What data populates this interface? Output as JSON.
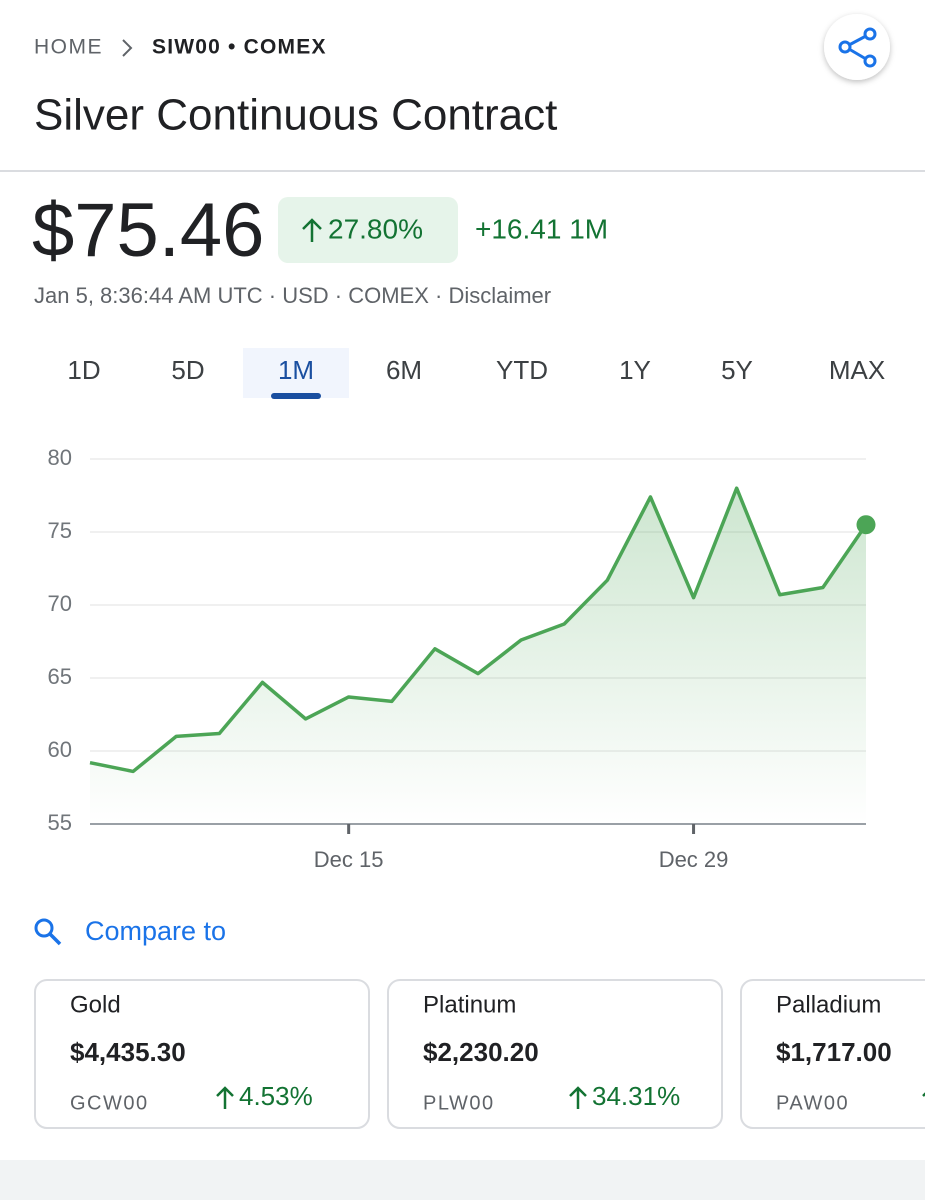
{
  "header": {
    "breadcrumb_home": "HOME",
    "breadcrumb_symbol": "SIW00 • COMEX",
    "title": "Silver Continuous Contract"
  },
  "quote": {
    "price": "$75.46",
    "change_percent": "27.80%",
    "change_absolute": "+16.41 1M",
    "timestamp": "Jan 5, 8:36:44 AM UTC · USD · COMEX · Disclaimer"
  },
  "tabs": {
    "items": [
      "1D",
      "5D",
      "1M",
      "6M",
      "YTD",
      "1Y",
      "5Y",
      "MAX"
    ],
    "selected": "1M"
  },
  "chart_data": {
    "type": "line",
    "categories": [
      null,
      null,
      null,
      null,
      null,
      null,
      "Dec 15",
      null,
      null,
      null,
      null,
      null,
      null,
      null,
      "Dec 29",
      null,
      null,
      null,
      null
    ],
    "values": [
      59.2,
      58.6,
      61.0,
      61.2,
      64.7,
      62.2,
      63.7,
      63.4,
      67.0,
      65.3,
      67.6,
      68.7,
      71.7,
      77.4,
      70.5,
      78.0,
      70.7,
      71.2,
      75.5
    ],
    "color": "#4ca556",
    "ylim": [
      55,
      80
    ],
    "yticks": [
      55,
      60,
      65,
      70,
      75,
      80
    ],
    "grid": true
  },
  "compare": {
    "label": "Compare to",
    "cards": [
      {
        "name": "Gold",
        "price": "$4,435.30",
        "symbol": "GCW00",
        "change": "4.53%"
      },
      {
        "name": "Platinum",
        "price": "$2,230.20",
        "symbol": "PLW00",
        "change": "34.31%"
      },
      {
        "name": "Palladium",
        "price": "$1,717.00",
        "symbol": "PAW00",
        "change": ""
      }
    ]
  }
}
